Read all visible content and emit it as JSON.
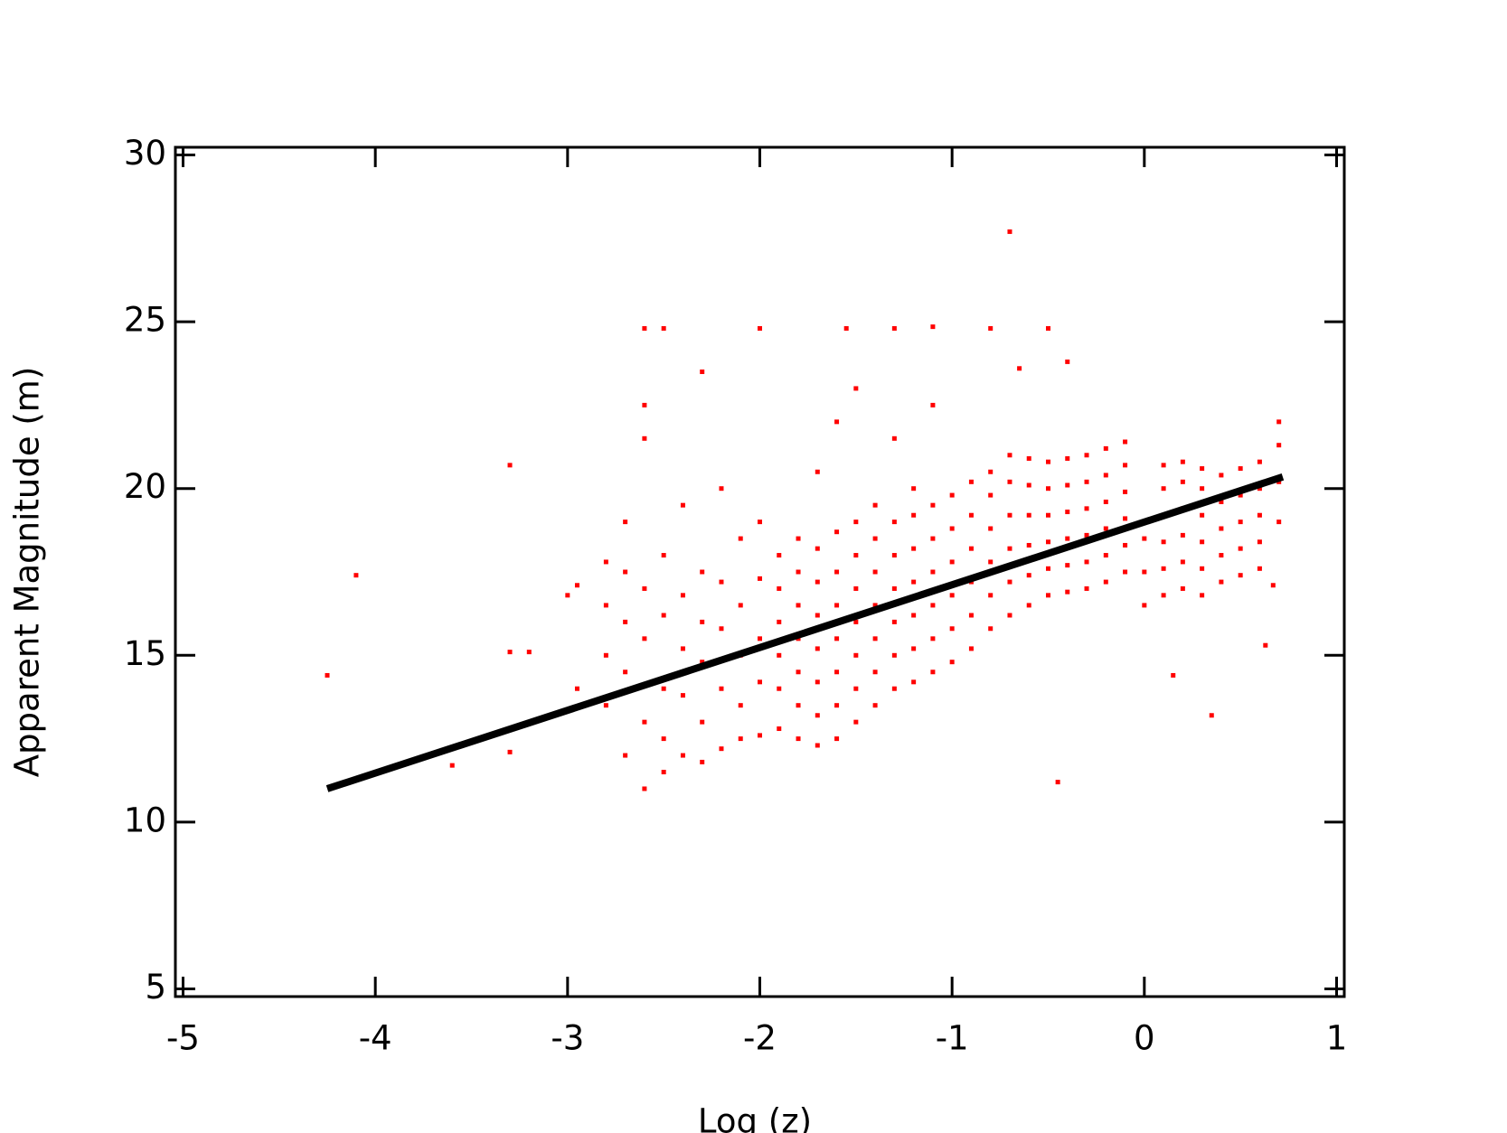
{
  "chart_data": {
    "type": "scatter",
    "x_label": "Log (z)",
    "y_label": "Apparent Magnitude (m)",
    "xlim": [
      -5.04,
      1.04
    ],
    "ylim": [
      4.77,
      30.23
    ],
    "xticks": [
      -5,
      -4,
      -3,
      -2,
      -1,
      0,
      1
    ],
    "yticks": [
      5,
      10,
      15,
      20,
      25,
      30
    ],
    "grid": false,
    "series": [
      {
        "type": "scatter",
        "color": "#ff0000",
        "x": [
          -4.25,
          -4.1,
          -3.3,
          -3.3,
          -3.3,
          -3.6,
          -3.2,
          -3.0,
          -2.95,
          -2.95,
          -0.7,
          -2.6,
          -2.5,
          -2.0,
          -1.55,
          -1.3,
          -1.1,
          -0.8,
          -0.5,
          -0.4,
          -0.65,
          -2.3,
          -2.6,
          0.35,
          -0.45,
          0.15,
          0.63,
          0.67,
          -2.8,
          -2.8,
          -2.8,
          -2.8,
          -2.7,
          -2.7,
          -2.7,
          -2.7,
          -2.7,
          -2.6,
          -2.6,
          -2.6,
          -2.6,
          -2.6,
          -2.5,
          -2.5,
          -2.5,
          -2.5,
          -2.5,
          -2.4,
          -2.4,
          -2.4,
          -2.4,
          -2.4,
          -2.3,
          -2.3,
          -2.3,
          -2.3,
          -2.3,
          -2.2,
          -2.2,
          -2.2,
          -2.2,
          -2.2,
          -2.1,
          -2.1,
          -2.1,
          -2.1,
          -2.1,
          -2.0,
          -2.0,
          -2.0,
          -2.0,
          -2.0,
          -1.9,
          -1.9,
          -1.9,
          -1.9,
          -1.9,
          -1.9,
          -1.8,
          -1.8,
          -1.8,
          -1.8,
          -1.8,
          -1.8,
          -1.8,
          -1.7,
          -1.7,
          -1.7,
          -1.7,
          -1.7,
          -1.7,
          -1.7,
          -1.7,
          -1.6,
          -1.6,
          -1.6,
          -1.6,
          -1.6,
          -1.6,
          -1.6,
          -1.6,
          -1.5,
          -1.5,
          -1.5,
          -1.5,
          -1.5,
          -1.5,
          -1.5,
          -1.5,
          -1.4,
          -1.4,
          -1.4,
          -1.4,
          -1.4,
          -1.4,
          -1.4,
          -1.3,
          -1.3,
          -1.3,
          -1.3,
          -1.3,
          -1.3,
          -1.3,
          -1.2,
          -1.2,
          -1.2,
          -1.2,
          -1.2,
          -1.2,
          -1.2,
          -1.1,
          -1.1,
          -1.1,
          -1.1,
          -1.1,
          -1.1,
          -1.1,
          -1.0,
          -1.0,
          -1.0,
          -1.0,
          -1.0,
          -1.0,
          -0.9,
          -0.9,
          -0.9,
          -0.9,
          -0.9,
          -0.9,
          -0.8,
          -0.8,
          -0.8,
          -0.8,
          -0.8,
          -0.8,
          -0.7,
          -0.7,
          -0.7,
          -0.7,
          -0.7,
          -0.7,
          -0.6,
          -0.6,
          -0.6,
          -0.6,
          -0.6,
          -0.6,
          -0.5,
          -0.5,
          -0.5,
          -0.5,
          -0.5,
          -0.5,
          -0.4,
          -0.4,
          -0.4,
          -0.4,
          -0.4,
          -0.4,
          -0.3,
          -0.3,
          -0.3,
          -0.3,
          -0.3,
          -0.3,
          -0.2,
          -0.2,
          -0.2,
          -0.2,
          -0.2,
          -0.2,
          -0.1,
          -0.1,
          -0.1,
          -0.1,
          -0.1,
          -0.1,
          0.0,
          0.0,
          0.0,
          0.1,
          0.1,
          0.1,
          0.1,
          0.1,
          0.1,
          0.2,
          0.2,
          0.2,
          0.2,
          0.2,
          0.2,
          0.3,
          0.3,
          0.3,
          0.3,
          0.3,
          0.3,
          0.4,
          0.4,
          0.4,
          0.4,
          0.4,
          0.5,
          0.5,
          0.5,
          0.5,
          0.5,
          0.6,
          0.6,
          0.6,
          0.6,
          0.6,
          0.7,
          0.7,
          0.7,
          0.7
        ],
        "y": [
          14.4,
          17.4,
          20.7,
          15.1,
          12.1,
          11.7,
          15.1,
          16.8,
          17.1,
          14.0,
          27.7,
          24.8,
          24.8,
          24.8,
          24.8,
          24.8,
          24.85,
          24.8,
          24.8,
          23.8,
          23.6,
          23.5,
          22.5,
          13.2,
          11.2,
          14.4,
          15.3,
          17.1,
          16.5,
          13.5,
          17.8,
          15.0,
          12.0,
          16.0,
          14.5,
          17.5,
          19.0,
          11.0,
          13.0,
          15.5,
          17.0,
          21.5,
          11.5,
          12.5,
          14.0,
          16.2,
          18.0,
          12.0,
          13.8,
          15.2,
          16.8,
          19.5,
          11.8,
          13.0,
          14.8,
          16.0,
          17.5,
          12.2,
          14.0,
          15.8,
          17.2,
          20.0,
          12.5,
          13.5,
          15.0,
          16.5,
          18.5,
          12.6,
          14.2,
          15.5,
          17.3,
          19.0,
          12.8,
          14.0,
          15.0,
          16.0,
          17.0,
          18.0,
          12.5,
          13.5,
          14.5,
          15.5,
          16.5,
          17.5,
          18.5,
          12.3,
          13.2,
          14.2,
          15.2,
          16.2,
          17.2,
          18.2,
          20.5,
          12.5,
          13.5,
          14.5,
          15.5,
          16.5,
          17.5,
          18.7,
          22.0,
          13.0,
          14.0,
          15.0,
          16.0,
          17.0,
          18.0,
          19.0,
          23.0,
          13.5,
          14.5,
          15.5,
          16.5,
          17.5,
          18.5,
          19.5,
          14.0,
          15.0,
          16.0,
          17.0,
          18.0,
          19.0,
          21.5,
          14.2,
          15.2,
          16.2,
          17.2,
          18.2,
          19.2,
          20.0,
          14.5,
          15.5,
          16.5,
          17.5,
          18.5,
          19.5,
          22.5,
          14.8,
          15.8,
          16.8,
          17.8,
          18.8,
          19.8,
          15.2,
          16.2,
          17.2,
          18.2,
          19.2,
          20.2,
          15.8,
          16.8,
          17.8,
          18.8,
          19.8,
          20.5,
          16.2,
          17.2,
          18.2,
          19.2,
          20.2,
          21.0,
          16.5,
          17.4,
          18.3,
          19.2,
          20.1,
          20.9,
          16.8,
          17.6,
          18.4,
          19.2,
          20.0,
          20.8,
          16.9,
          17.7,
          18.5,
          19.3,
          20.1,
          20.9,
          17.0,
          17.8,
          18.6,
          19.4,
          20.2,
          21.0,
          17.2,
          18.0,
          18.8,
          19.6,
          20.4,
          21.2,
          17.5,
          18.3,
          19.1,
          19.9,
          20.7,
          21.4,
          16.5,
          17.5,
          18.5,
          16.8,
          17.6,
          18.4,
          19.2,
          20.0,
          20.7,
          17.0,
          17.8,
          18.6,
          19.4,
          20.2,
          20.8,
          16.8,
          17.6,
          18.4,
          19.2,
          20.0,
          20.6,
          17.2,
          18.0,
          18.8,
          19.6,
          20.4,
          17.4,
          18.2,
          19.0,
          19.8,
          20.6,
          17.6,
          18.4,
          19.2,
          20.0,
          20.8,
          19.0,
          20.2,
          21.3,
          22.0
        ]
      },
      {
        "type": "line",
        "color": "#000000",
        "x": [
          -4.25,
          0.72
        ],
        "y": [
          11.0,
          20.35
        ]
      }
    ]
  }
}
